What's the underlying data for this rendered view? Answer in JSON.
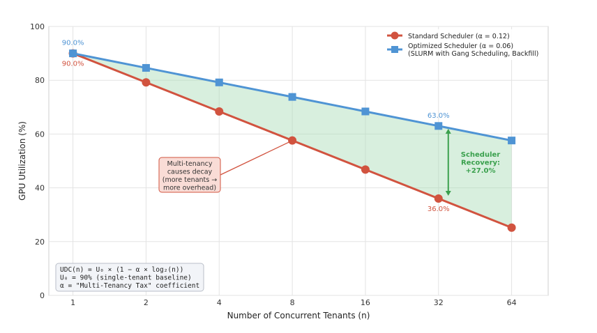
{
  "chart_data": {
    "type": "line",
    "xlabel": "Number of Concurrent Tenants (n)",
    "ylabel": "GPU Utilization (%)",
    "x": [
      1,
      2,
      4,
      8,
      16,
      32,
      64
    ],
    "x_tick_labels": [
      "1",
      "2",
      "4",
      "8",
      "16",
      "32",
      "64"
    ],
    "x_scale": "log2",
    "ylim": [
      0,
      100
    ],
    "y_ticks": [
      0,
      20,
      40,
      60,
      80,
      100
    ],
    "grid": true,
    "legend_position": "top-right",
    "series": [
      {
        "name": "Standard Scheduler (α = 0.12)",
        "color": "#d1533f",
        "marker": "circle",
        "values": [
          90.0,
          79.2,
          68.4,
          57.6,
          46.8,
          36.0,
          25.2
        ]
      },
      {
        "name": "Optimized Scheduler (α = 0.06)",
        "name_line2": "(SLURM with Gang Scheduling, Backfill)",
        "color": "#4f94d4",
        "marker": "square",
        "values": [
          90.0,
          84.6,
          79.2,
          73.8,
          68.4,
          63.0,
          57.6
        ]
      }
    ],
    "fill_between": {
      "color": "#a9dbb5",
      "opacity": 0.45
    },
    "point_labels": [
      {
        "series": 1,
        "index": 0,
        "text": "90.0%",
        "position": "above"
      },
      {
        "series": 0,
        "index": 0,
        "text": "90.0%",
        "position": "below"
      },
      {
        "series": 1,
        "index": 5,
        "text": "63.0%",
        "position": "above"
      },
      {
        "series": 0,
        "index": 5,
        "text": "36.0%",
        "position": "below"
      }
    ],
    "annotations": {
      "decay_note": {
        "lines": [
          "Multi-tenancy",
          "causes decay",
          "(more tenants →",
          "more overhead)"
        ],
        "arrow_target": {
          "x": 8,
          "y": 57.6
        },
        "box_fill": "#f9dcd6",
        "box_stroke": "#d1533f"
      },
      "recovery": {
        "lines": [
          "Scheduler",
          "Recovery:",
          "+27.0%"
        ],
        "color": "#3aa04d",
        "at_x": 32,
        "from_y": 36.0,
        "to_y": 63.0
      },
      "formula_box": {
        "lines": [
          "UDC(n) = U₀ × (1 − α × log₂(n))",
          "U₀ = 90% (single-tenant baseline)",
          "α = \"Multi-Tenancy Tax\" coefficient"
        ]
      }
    }
  }
}
